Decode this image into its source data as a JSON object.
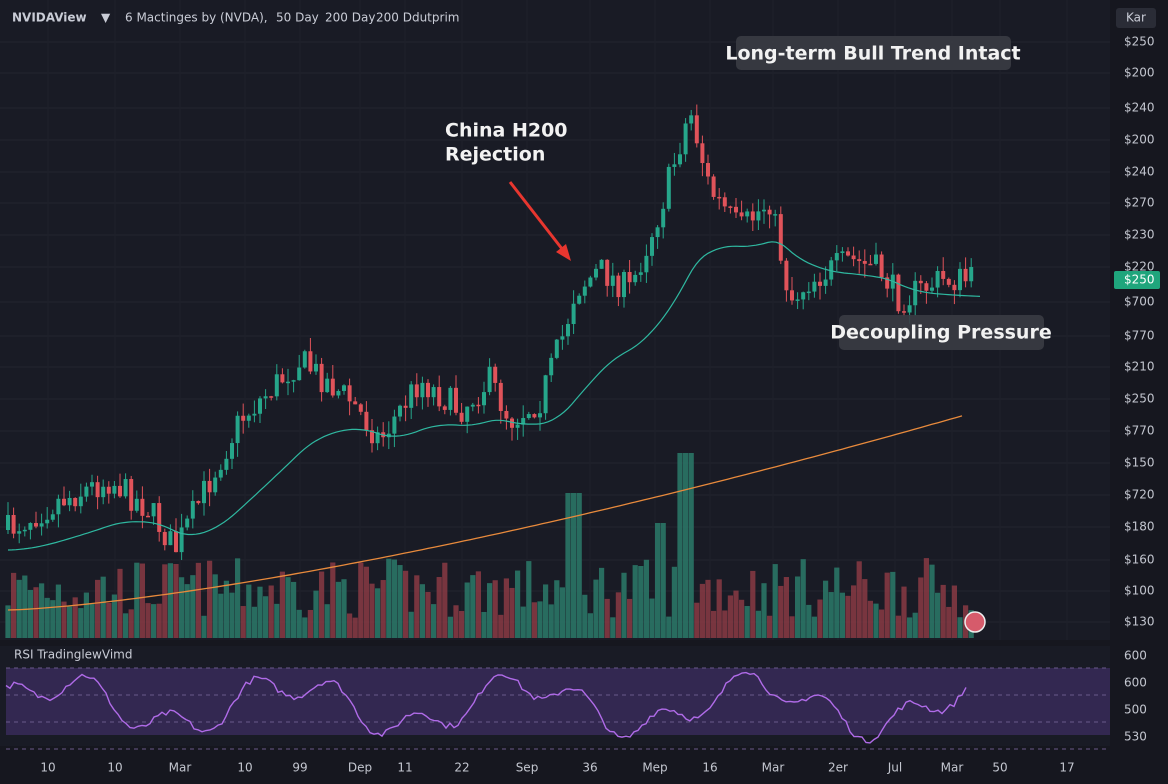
{
  "header": {
    "brand": "NVIDAView",
    "title": "6 Mactinges by (NVDA),",
    "ma50": "50 Day",
    "ma200": "200 Day",
    "extra": "200 Ddutprim",
    "corner": "Kar"
  },
  "price_axis": [
    "$250",
    "$200",
    "$240",
    "$200",
    "$240",
    "$270",
    "$230",
    "$220",
    "$700",
    "$770",
    "$210",
    "$250",
    "$770",
    "$150",
    "$720",
    "$180",
    "$160",
    "$100",
    "$130"
  ],
  "price_badge": "$250",
  "rsi": {
    "label": "RSI TradinglewVimd",
    "axis": [
      "600",
      "600",
      "500",
      "530"
    ]
  },
  "x_axis": [
    "10",
    "10",
    "Mar",
    "10",
    "99",
    "Dep",
    "11",
    "22",
    "Sep",
    "36",
    "Mep",
    "16",
    "Mar",
    "2er",
    "Jul",
    "Mar",
    "50",
    "17"
  ],
  "annotations": {
    "china": [
      "China H200",
      "Rejection"
    ],
    "bull": "Long-term Bull Trend Intact",
    "decoupling": "Decoupling Pressure"
  }
}
